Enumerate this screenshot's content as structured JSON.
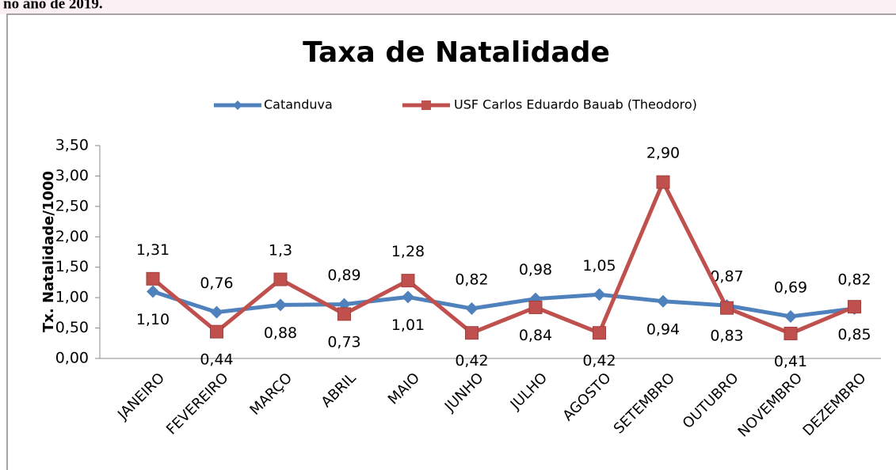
{
  "caption": "no ano de 2019.",
  "chart_data": {
    "type": "line",
    "title": "Taxa de Natalidade",
    "y_label": "Tx. Natalidade/1000",
    "categories": [
      "JANEIRO",
      "FEVEREIRO",
      "MARÇO",
      "ABRIL",
      "MAIO",
      "JUNHO",
      "JULHO",
      "AGOSTO",
      "SETEMBRO",
      "OUTUBRO",
      "NOVEMBRO",
      "DEZEMBRO"
    ],
    "series": [
      {
        "name": "Catanduva",
        "color": "#4f81bd",
        "marker": "diamond",
        "values": [
          1.1,
          0.76,
          0.88,
          0.89,
          1.01,
          0.82,
          0.98,
          1.05,
          0.94,
          0.87,
          0.69,
          0.82
        ],
        "value_labels": [
          "1,10",
          "0,76",
          "0,88",
          "0,89",
          "1,01",
          "0,82",
          "0,98",
          "1,05",
          "0,94",
          "0,87",
          "0,69",
          "0,82"
        ]
      },
      {
        "name": "USF Carlos Eduardo Bauab (Theodoro)",
        "color": "#c0504d",
        "marker": "square",
        "values": [
          1.31,
          0.44,
          1.3,
          0.73,
          1.28,
          0.42,
          0.84,
          0.42,
          2.9,
          0.83,
          0.41,
          0.85
        ],
        "value_labels": [
          "1,31",
          "0,44",
          "1,3",
          "0,73",
          "1,28",
          "0,42",
          "0,84",
          "0,42",
          "2,90",
          "0,83",
          "0,41",
          "0,85"
        ]
      }
    ],
    "ylim": [
      0,
      3.5
    ],
    "yticks": [
      {
        "value": 0,
        "label": "0,00"
      },
      {
        "value": 0.5,
        "label": "0,50"
      },
      {
        "value": 1,
        "label": "1,00"
      },
      {
        "value": 1.5,
        "label": "1,50"
      },
      {
        "value": 2,
        "label": "2,00"
      },
      {
        "value": 2.5,
        "label": "2,50"
      },
      {
        "value": 3,
        "label": "3,00"
      },
      {
        "value": 3.5,
        "label": "3,50"
      }
    ],
    "legend": "top"
  }
}
